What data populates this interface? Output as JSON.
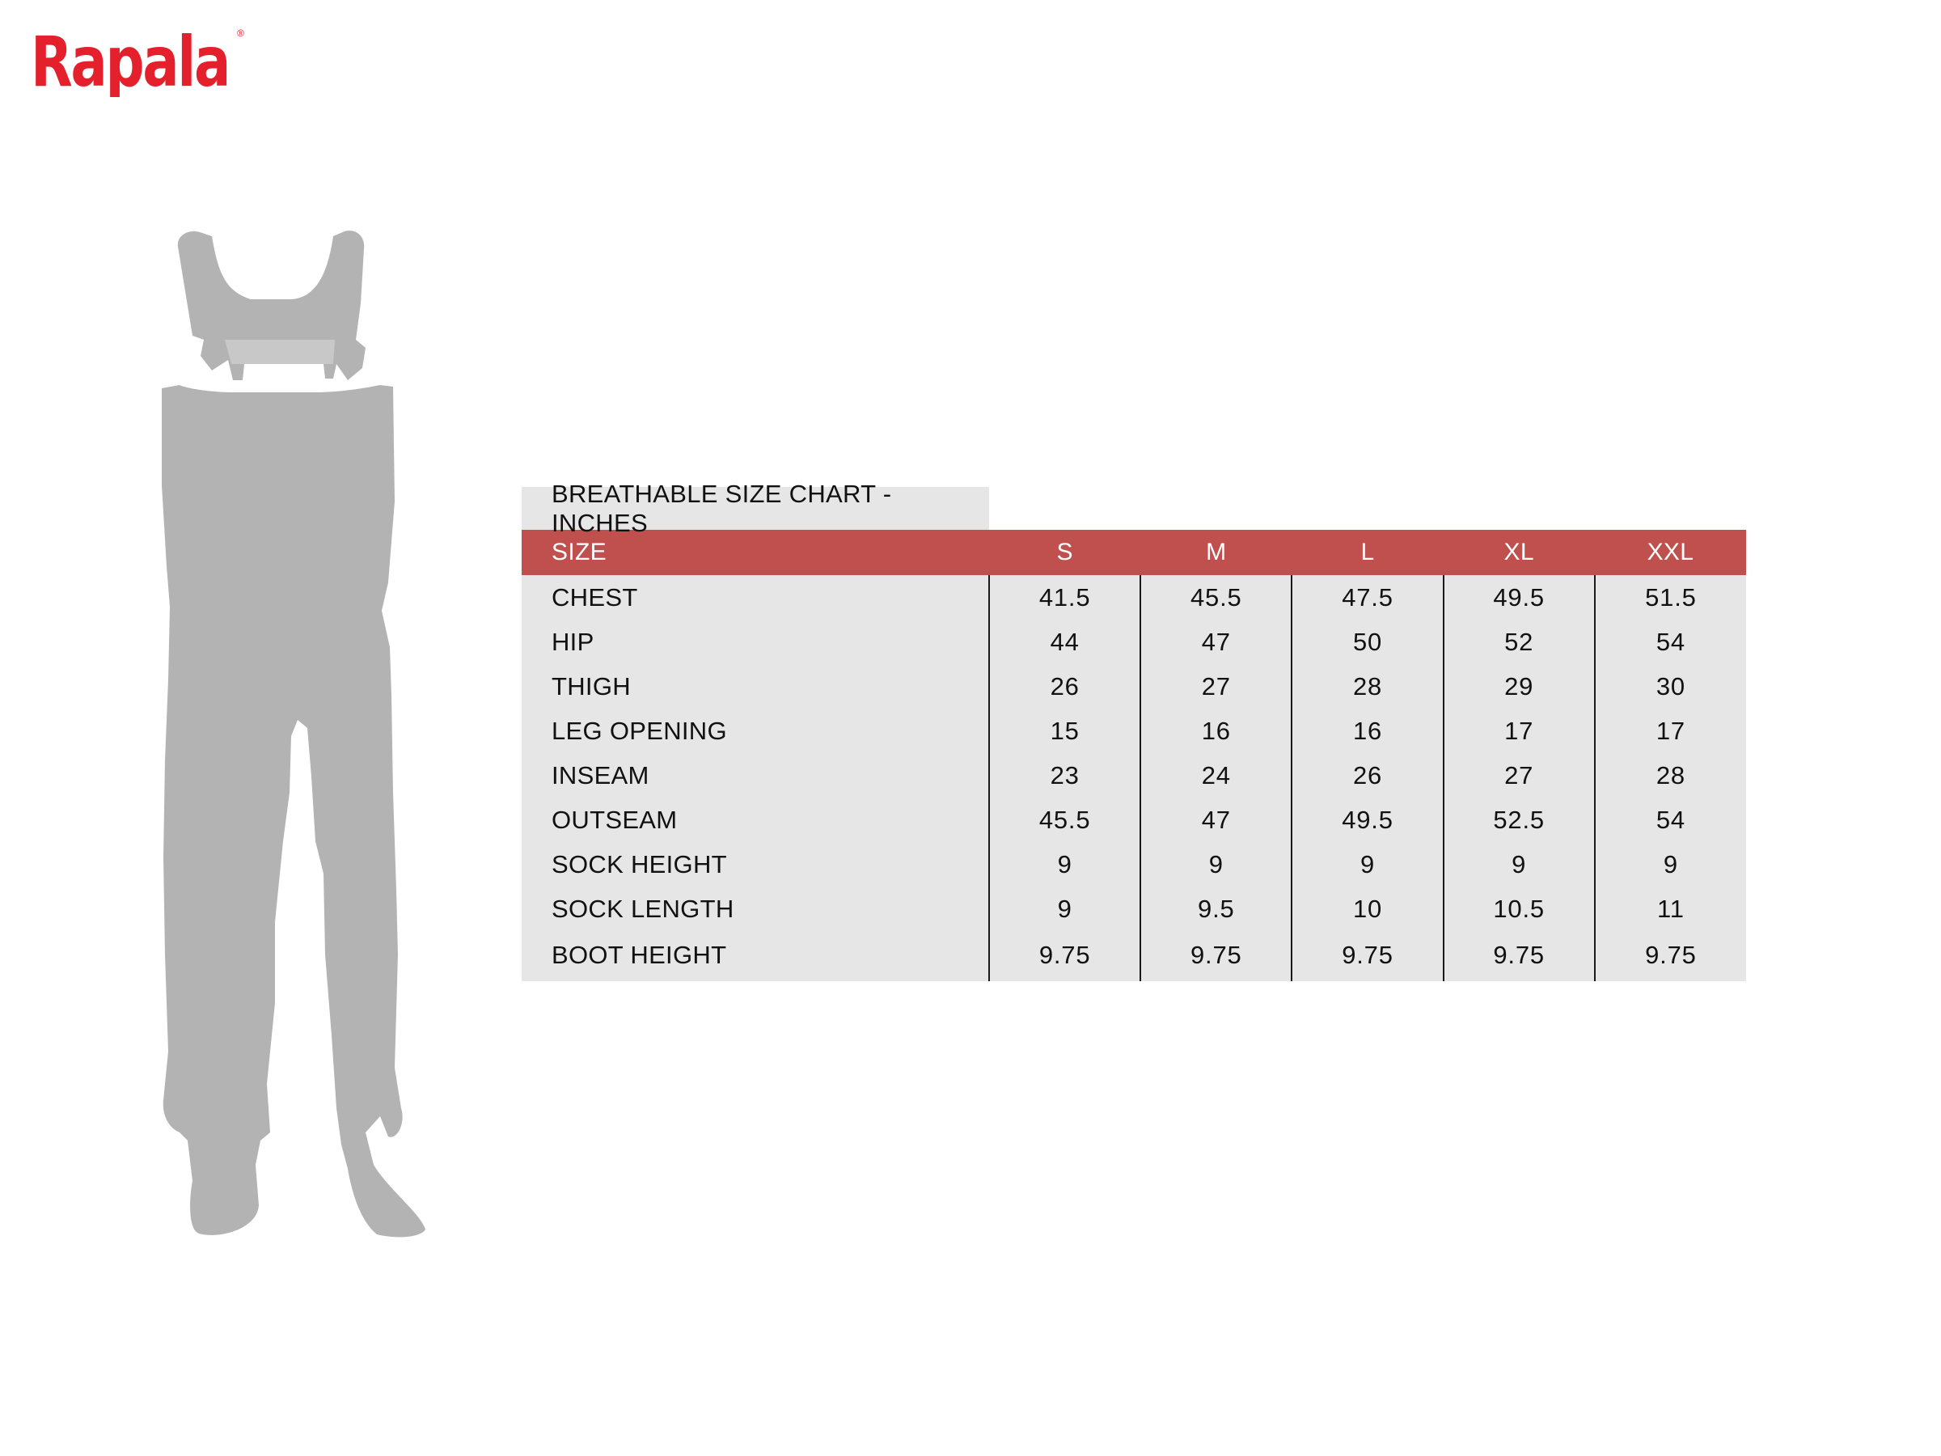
{
  "brand": {
    "logo_text": "Rapala",
    "registered_mark": "®",
    "color": "#e4202c"
  },
  "illustration": {
    "icon": "wader-silhouette-icon",
    "color": "#b3b3b3"
  },
  "size_chart": {
    "title": "BREATHABLE SIZE CHART - INCHES",
    "header_color": "#c0504e",
    "row_color": "#e6e6e6",
    "header": {
      "label": "SIZE",
      "sizes": [
        "S",
        "M",
        "L",
        "XL",
        "XXL"
      ]
    },
    "rows": [
      {
        "label": "CHEST",
        "values": [
          "41.5",
          "45.5",
          "47.5",
          "49.5",
          "51.5"
        ]
      },
      {
        "label": "HIP",
        "values": [
          "44",
          "47",
          "50",
          "52",
          "54"
        ]
      },
      {
        "label": "THIGH",
        "values": [
          "26",
          "27",
          "28",
          "29",
          "30"
        ]
      },
      {
        "label": "LEG OPENING",
        "values": [
          "15",
          "16",
          "16",
          "17",
          "17"
        ]
      },
      {
        "label": "INSEAM",
        "values": [
          "23",
          "24",
          "26",
          "27",
          "28"
        ]
      },
      {
        "label": "OUTSEAM",
        "values": [
          "45.5",
          "47",
          "49.5",
          "52.5",
          "54"
        ]
      },
      {
        "label": "SOCK HEIGHT",
        "values": [
          "9",
          "9",
          "9",
          "9",
          "9"
        ]
      },
      {
        "label": "SOCK LENGTH",
        "values": [
          "9",
          "9.5",
          "10",
          "10.5",
          "11"
        ]
      },
      {
        "label": "BOOT HEIGHT",
        "values": [
          "9.75",
          "9.75",
          "9.75",
          "9.75",
          "9.75"
        ]
      }
    ]
  }
}
